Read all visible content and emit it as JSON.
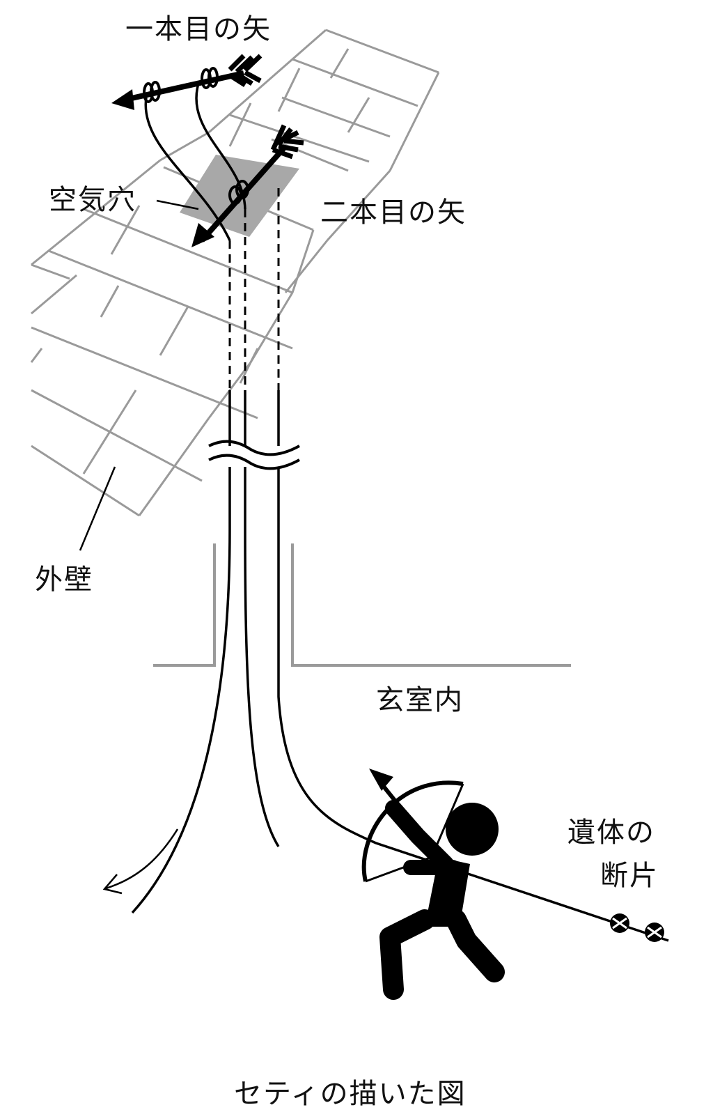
{
  "labels": {
    "first_arrow": "一本目の矢",
    "second_arrow": "二本目の矢",
    "air_hole": "空気穴",
    "outer_wall": "外壁",
    "burial_chamber": "玄室内",
    "remains_line1": "遺体の",
    "remains_line2": "断片",
    "caption": "セティの描いた図"
  },
  "colors": {
    "ink": "#000000",
    "wall_lines": "#9a9a9a",
    "air_hole_fill": "#a8a8a8",
    "background": "#ffffff"
  },
  "icons": [
    "arrow-icon",
    "archer-icon",
    "bow-icon",
    "string-knot-icon"
  ]
}
